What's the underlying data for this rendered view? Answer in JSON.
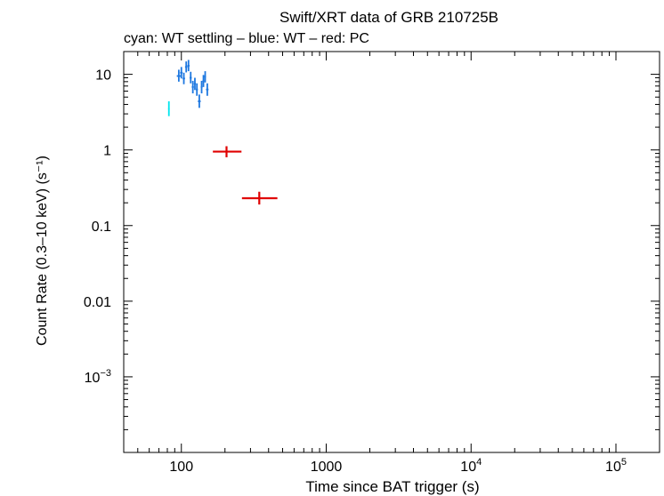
{
  "chart_data": {
    "type": "scatter",
    "title": "Swift/XRT data of GRB 210725B",
    "subtitle": "cyan: WT settling – blue: WT – red: PC",
    "xlabel": "Time since BAT trigger (s)",
    "ylabel": "Count Rate (0.3–10 keV) (s⁻¹)",
    "xscale": "log",
    "yscale": "log",
    "xlim": [
      40,
      200000
    ],
    "ylim": [
      0.0001,
      20
    ],
    "x_ticks": [
      {
        "value": 100,
        "label": "100"
      },
      {
        "value": 1000,
        "label": "1000"
      },
      {
        "value": 10000,
        "base": "10",
        "exp": "4"
      },
      {
        "value": 100000,
        "base": "10",
        "exp": "5"
      }
    ],
    "y_ticks": [
      {
        "value": 10,
        "label": "10"
      },
      {
        "value": 1,
        "label": "1"
      },
      {
        "value": 0.1,
        "label": "0.1"
      },
      {
        "value": 0.01,
        "label": "0.01"
      },
      {
        "value": 0.001,
        "base": "10",
        "exp": "−3"
      }
    ],
    "series": [
      {
        "name": "WT settling",
        "color": "#00e5ee",
        "points": [
          {
            "x": 82,
            "xlo": 81,
            "xhi": 83,
            "y": 3.5,
            "ylo": 2.8,
            "yhi": 4.4
          }
        ]
      },
      {
        "name": "WT",
        "color": "#1e78e0",
        "points": [
          {
            "x": 96,
            "xlo": 93,
            "xhi": 99,
            "y": 9.5,
            "ylo": 8.0,
            "yhi": 11.5
          },
          {
            "x": 100,
            "xlo": 98,
            "xhi": 102,
            "y": 10.5,
            "ylo": 8.8,
            "yhi": 12.5
          },
          {
            "x": 104,
            "xlo": 102,
            "xhi": 106,
            "y": 8.8,
            "ylo": 7.4,
            "yhi": 10.5
          },
          {
            "x": 108,
            "xlo": 106,
            "xhi": 110,
            "y": 12.5,
            "ylo": 10.6,
            "yhi": 14.8
          },
          {
            "x": 112,
            "xlo": 110,
            "xhi": 114,
            "y": 13.0,
            "ylo": 11.0,
            "yhi": 15.5
          },
          {
            "x": 116,
            "xlo": 114,
            "xhi": 118,
            "y": 9.0,
            "ylo": 7.6,
            "yhi": 10.8
          },
          {
            "x": 120,
            "xlo": 118,
            "xhi": 122,
            "y": 6.8,
            "ylo": 5.6,
            "yhi": 8.2
          },
          {
            "x": 124,
            "xlo": 122,
            "xhi": 126,
            "y": 7.5,
            "ylo": 6.2,
            "yhi": 9.0
          },
          {
            "x": 128,
            "xlo": 126,
            "xhi": 130,
            "y": 6.3,
            "ylo": 5.2,
            "yhi": 7.6
          },
          {
            "x": 133,
            "xlo": 130,
            "xhi": 136,
            "y": 4.4,
            "ylo": 3.6,
            "yhi": 5.4
          },
          {
            "x": 138,
            "xlo": 136,
            "xhi": 140,
            "y": 6.8,
            "ylo": 5.6,
            "yhi": 8.2
          },
          {
            "x": 142,
            "xlo": 140,
            "xhi": 144,
            "y": 8.2,
            "ylo": 6.8,
            "yhi": 9.8
          },
          {
            "x": 146,
            "xlo": 144,
            "xhi": 148,
            "y": 9.3,
            "ylo": 7.8,
            "yhi": 11.0
          },
          {
            "x": 151,
            "xlo": 148,
            "xhi": 154,
            "y": 6.3,
            "ylo": 5.2,
            "yhi": 7.6
          }
        ]
      },
      {
        "name": "PC",
        "color": "#e00000",
        "points": [
          {
            "x": 205,
            "xlo": 165,
            "xhi": 260,
            "y": 0.95,
            "ylo": 0.8,
            "yhi": 1.12
          },
          {
            "x": 345,
            "xlo": 262,
            "xhi": 460,
            "y": 0.23,
            "ylo": 0.19,
            "yhi": 0.28
          }
        ]
      }
    ]
  }
}
